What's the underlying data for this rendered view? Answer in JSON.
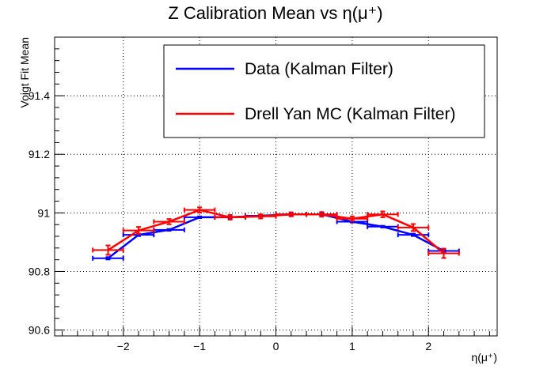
{
  "chart_data": {
    "type": "line",
    "title": "Z Calibration Mean vs η(μ⁺)",
    "xlabel": "η(μ⁺)",
    "ylabel": "Voigt Fit Mean",
    "xlim": [
      -2.9,
      2.9
    ],
    "ylim": [
      90.58,
      91.6
    ],
    "x_ticks": [
      -2,
      -1,
      0,
      1,
      2
    ],
    "x_tick_labels": [
      "−2",
      "−1",
      "0",
      "1",
      "2"
    ],
    "y_ticks": [
      90.6,
      90.8,
      91,
      91.2,
      91.4
    ],
    "y_tick_labels": [
      "90.6",
      "90.8",
      "91",
      "91.2",
      "91.4"
    ],
    "grid": true,
    "legend_position": "top-right",
    "series": [
      {
        "name": "Data (Kalman Filter)",
        "color": "#0000ff",
        "x": [
          -2.2,
          -1.8,
          -1.4,
          -1.0,
          -0.6,
          -0.2,
          0.2,
          0.6,
          1.0,
          1.4,
          1.8,
          2.2
        ],
        "xerr": [
          0.2,
          0.2,
          0.2,
          0.2,
          0.2,
          0.2,
          0.2,
          0.2,
          0.2,
          0.2,
          0.2,
          0.2
        ],
        "y": [
          90.845,
          90.925,
          90.942,
          90.985,
          90.985,
          90.99,
          90.995,
          90.995,
          90.97,
          90.953,
          90.925,
          90.87
        ],
        "yerr": [
          0.004,
          0.004,
          0.003,
          0.003,
          0.003,
          0.003,
          0.003,
          0.003,
          0.003,
          0.003,
          0.004,
          0.005
        ]
      },
      {
        "name": "Drell Yan MC (Kalman Filter)",
        "color": "#ff0000",
        "x": [
          -2.2,
          -1.8,
          -1.4,
          -1.0,
          -0.6,
          -0.2,
          0.2,
          0.6,
          1.0,
          1.4,
          1.8,
          2.2
        ],
        "xerr": [
          0.2,
          0.2,
          0.2,
          0.2,
          0.2,
          0.2,
          0.2,
          0.2,
          0.2,
          0.2,
          0.2,
          0.2
        ],
        "y": [
          90.873,
          90.94,
          90.97,
          91.01,
          90.985,
          90.988,
          90.995,
          90.995,
          90.98,
          90.995,
          90.95,
          90.862
        ],
        "yerr": [
          0.016,
          0.012,
          0.009,
          0.009,
          0.008,
          0.007,
          0.007,
          0.008,
          0.008,
          0.01,
          0.012,
          0.016
        ]
      }
    ]
  }
}
